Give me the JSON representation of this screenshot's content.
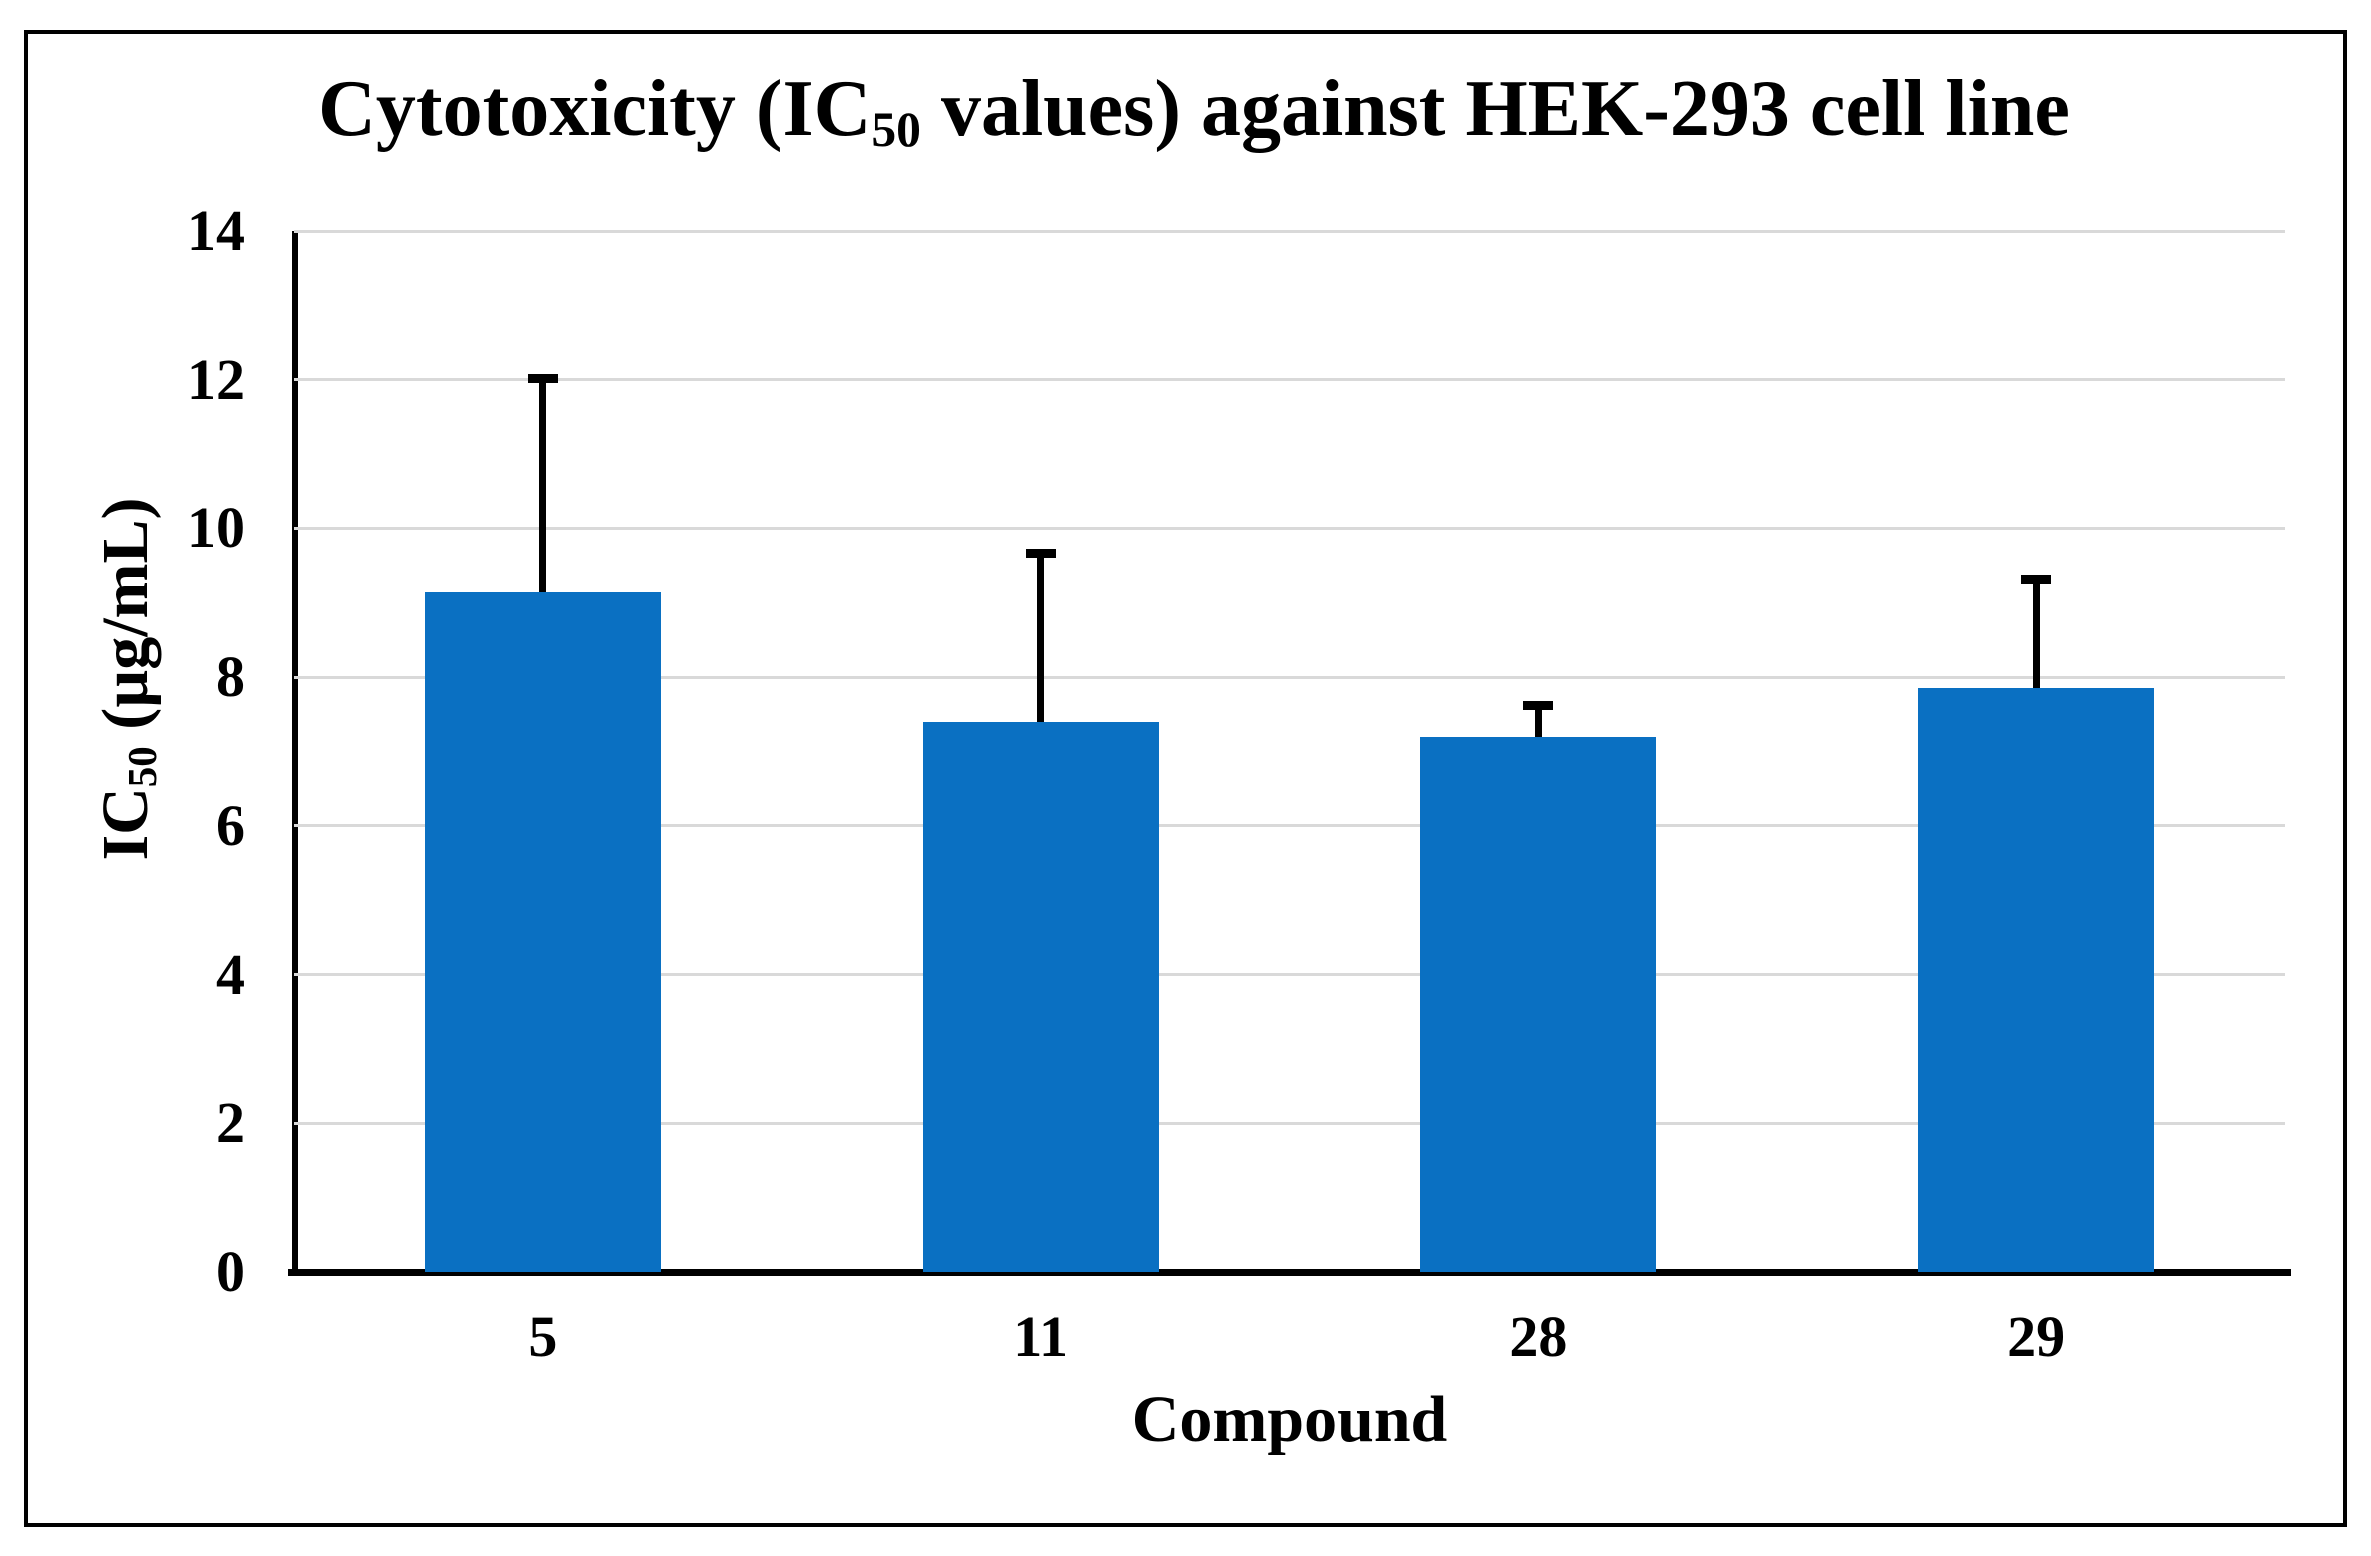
{
  "figure": {
    "background_color": "#FFFFFF",
    "border_color": "#000000"
  },
  "chart_data": {
    "type": "bar",
    "title": "Cytotoxicity (IC50 values) against HEK-293 cell line",
    "title_parts": {
      "pre": "Cytotoxicity (IC",
      "sub": "50",
      "post": " values) against HEK-293 cell line"
    },
    "xlabel": "Compound",
    "ylabel": "IC50 (µg/mL)",
    "ylabel_parts": {
      "pre": "IC",
      "sub": "50",
      "post": " (µg/mL)"
    },
    "categories": [
      "5",
      "11",
      "28",
      "29"
    ],
    "values": [
      9.15,
      7.4,
      7.2,
      7.85
    ],
    "error_plus": [
      2.9,
      2.3,
      0.45,
      1.5
    ],
    "ylim": [
      0,
      14
    ],
    "yticks": [
      0,
      2,
      4,
      6,
      8,
      10,
      12,
      14
    ],
    "grid": true,
    "legend": "none",
    "bar_color": "#0A70C2",
    "gridline_color": "#D9D9D9",
    "axis_color": "#000000",
    "error_color": "#000000",
    "text_color": "#000000"
  }
}
